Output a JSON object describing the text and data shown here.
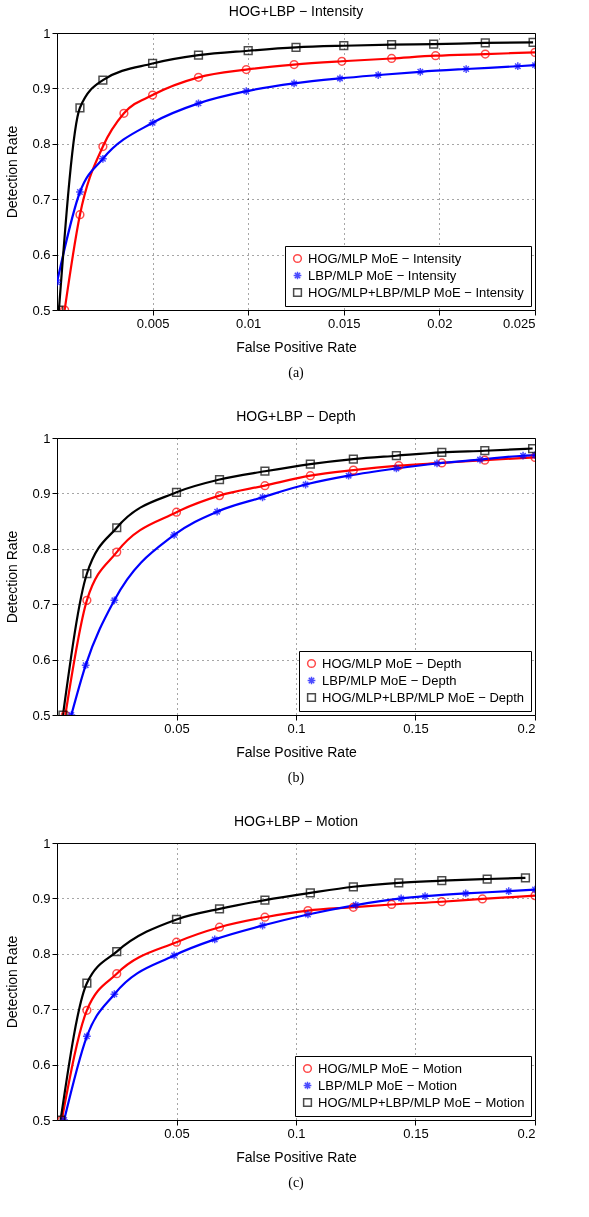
{
  "chart_data": [
    {
      "type": "line",
      "title": "HOG+LBP − Intensity",
      "xlabel": "False Positive Rate",
      "ylabel": "Detection Rate",
      "xlim": [
        0,
        0.025
      ],
      "ylim": [
        0.5,
        1
      ],
      "xticks": [
        0.005,
        0.01,
        0.015,
        0.02,
        0.025
      ],
      "yticks": [
        0.5,
        0.6,
        0.7,
        0.8,
        0.9,
        1
      ],
      "grid": true,
      "legend": "bottom right",
      "annotations": [
        "(a)"
      ],
      "series": [
        {
          "name": "HOG/MLP MoE − Intensity",
          "color": "#ff0000",
          "marker": "circle",
          "x": [
            0.0004,
            0.0012,
            0.0024,
            0.0035,
            0.005,
            0.0074,
            0.0099,
            0.0124,
            0.0149,
            0.0175,
            0.0198,
            0.0224,
            0.025
          ],
          "values": [
            0.5,
            0.672,
            0.795,
            0.855,
            0.888,
            0.92,
            0.934,
            0.943,
            0.949,
            0.954,
            0.959,
            0.962,
            0.965
          ]
        },
        {
          "name": "LBP/MLP MoE − Intensity",
          "color": "#0000ff",
          "marker": "cross",
          "x": [
            0,
            0.0012,
            0.0024,
            0.005,
            0.0074,
            0.0099,
            0.0124,
            0.0148,
            0.0168,
            0.019,
            0.0214,
            0.0241,
            0.025
          ],
          "values": [
            0.55,
            0.713,
            0.773,
            0.838,
            0.873,
            0.895,
            0.909,
            0.918,
            0.924,
            0.93,
            0.935,
            0.94,
            0.942
          ]
        },
        {
          "name": "HOG/MLP+LBP/MLP MoE − Intensity",
          "color": "#000000",
          "marker": "square",
          "x": [
            0.0001,
            0.0012,
            0.0024,
            0.005,
            0.0074,
            0.01,
            0.0125,
            0.015,
            0.0175,
            0.0197,
            0.0224,
            0.0249
          ],
          "values": [
            0.5,
            0.865,
            0.915,
            0.945,
            0.96,
            0.968,
            0.974,
            0.977,
            0.979,
            0.98,
            0.982,
            0.983
          ]
        }
      ]
    },
    {
      "type": "line",
      "title": "HOG+LBP − Depth",
      "xlabel": "False Positive Rate",
      "ylabel": "Detection Rate",
      "xlim": [
        0,
        0.2
      ],
      "ylim": [
        0.5,
        1
      ],
      "xticks": [
        0.05,
        0.1,
        0.15,
        0.2
      ],
      "yticks": [
        0.5,
        0.6,
        0.7,
        0.8,
        0.9,
        1
      ],
      "grid": true,
      "legend": "bottom right",
      "annotations": [
        "(b)"
      ],
      "series": [
        {
          "name": "HOG/MLP MoE − Depth",
          "color": "#ff0000",
          "marker": "circle",
          "x": [
            0.0035,
            0.0125,
            0.025,
            0.05,
            0.068,
            0.087,
            0.106,
            0.124,
            0.143,
            0.161,
            0.179,
            0.2
          ],
          "values": [
            0.5,
            0.707,
            0.794,
            0.866,
            0.896,
            0.914,
            0.932,
            0.942,
            0.95,
            0.955,
            0.96,
            0.965
          ]
        },
        {
          "name": "LBP/MLP MoE − Depth",
          "color": "#0000ff",
          "marker": "cross",
          "x": [
            0.006,
            0.012,
            0.024,
            0.049,
            0.067,
            0.086,
            0.104,
            0.122,
            0.142,
            0.159,
            0.177,
            0.195,
            0.2
          ],
          "values": [
            0.5,
            0.59,
            0.707,
            0.825,
            0.867,
            0.893,
            0.916,
            0.932,
            0.945,
            0.954,
            0.961,
            0.968,
            0.969
          ]
        },
        {
          "name": "HOG/MLP+LBP/MLP MoE − Depth",
          "color": "#000000",
          "marker": "square",
          "x": [
            0.0025,
            0.0125,
            0.025,
            0.05,
            0.068,
            0.087,
            0.106,
            0.124,
            0.142,
            0.161,
            0.179,
            0.199
          ],
          "values": [
            0.5,
            0.755,
            0.838,
            0.902,
            0.925,
            0.94,
            0.953,
            0.962,
            0.968,
            0.974,
            0.977,
            0.981
          ]
        }
      ]
    },
    {
      "type": "line",
      "title": "HOG+LBP − Motion",
      "xlabel": "False Positive Rate",
      "ylabel": "Detection Rate",
      "xlim": [
        0,
        0.2
      ],
      "ylim": [
        0.5,
        1
      ],
      "xticks": [
        0.05,
        0.1,
        0.15,
        0.2
      ],
      "yticks": [
        0.5,
        0.6,
        0.7,
        0.8,
        0.9,
        1
      ],
      "grid": true,
      "legend": "bottom right",
      "annotations": [
        "(c)"
      ],
      "series": [
        {
          "name": "HOG/MLP MoE − Motion",
          "color": "#ff0000",
          "marker": "circle",
          "x": [
            0.002,
            0.0125,
            0.025,
            0.05,
            0.068,
            0.087,
            0.105,
            0.124,
            0.14,
            0.161,
            0.178,
            0.2
          ],
          "values": [
            0.5,
            0.698,
            0.764,
            0.821,
            0.848,
            0.866,
            0.878,
            0.884,
            0.889,
            0.894,
            0.899,
            0.905
          ]
        },
        {
          "name": "LBP/MLP MoE − Motion",
          "color": "#0000ff",
          "marker": "cross",
          "x": [
            0.003,
            0.0125,
            0.024,
            0.049,
            0.066,
            0.086,
            0.105,
            0.125,
            0.144,
            0.154,
            0.171,
            0.189,
            0.2
          ],
          "values": [
            0.5,
            0.651,
            0.727,
            0.797,
            0.826,
            0.851,
            0.871,
            0.888,
            0.9,
            0.904,
            0.909,
            0.913,
            0.916
          ]
        },
        {
          "name": "HOG/MLP+LBP/MLP MoE − Motion",
          "color": "#000000",
          "marker": "square",
          "x": [
            0.0015,
            0.0125,
            0.025,
            0.05,
            0.068,
            0.087,
            0.106,
            0.124,
            0.143,
            0.161,
            0.18,
            0.196
          ],
          "values": [
            0.5,
            0.747,
            0.804,
            0.862,
            0.881,
            0.897,
            0.91,
            0.921,
            0.928,
            0.932,
            0.935,
            0.937
          ]
        }
      ]
    }
  ]
}
